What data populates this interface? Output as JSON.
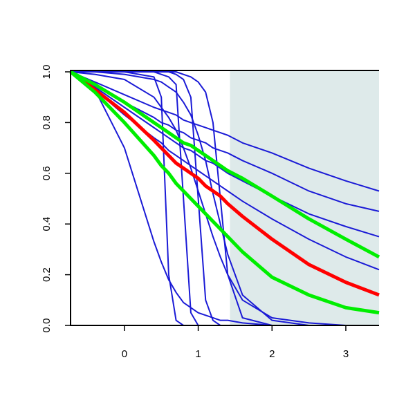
{
  "chart_data": {
    "type": "line",
    "x": [
      -0.73,
      -0.4,
      0,
      0.4,
      0.5,
      0.6,
      0.7,
      0.8,
      0.9,
      1.0,
      1.1,
      1.2,
      1.3,
      1.4,
      1.6,
      2.0,
      2.5,
      3.0,
      3.45
    ],
    "xlim": [
      -0.73,
      3.45
    ],
    "ylim": [
      0,
      1
    ],
    "xticks": [
      0,
      1,
      2,
      3
    ],
    "yticks": [
      {
        "value": 0,
        "label": "0.0"
      },
      0.2,
      0.4,
      0.6,
      0.8,
      {
        "value": 1,
        "label": "1.0"
      }
    ],
    "highlight": {
      "x": [
        1.43,
        3.45
      ],
      "color": "#deeaea"
    },
    "series": [
      {
        "color": "#1a1ad6",
        "values": [
          1,
          0.96,
          0.91,
          0.86,
          0.85,
          0.84,
          0.83,
          0.81,
          0.8,
          0.79,
          0.78,
          0.77,
          0.76,
          0.75,
          0.72,
          0.68,
          0.62,
          0.57,
          0.53
        ]
      },
      {
        "color": "#1a1ad6",
        "values": [
          1,
          0.95,
          0.88,
          0.82,
          0.8,
          0.79,
          0.77,
          0.76,
          0.74,
          0.73,
          0.72,
          0.7,
          0.69,
          0.68,
          0.65,
          0.6,
          0.53,
          0.48,
          0.45
        ]
      },
      {
        "color": "#1a1ad6",
        "values": [
          1,
          0.94,
          0.86,
          0.78,
          0.76,
          0.74,
          0.72,
          0.7,
          0.69,
          0.67,
          0.65,
          0.64,
          0.62,
          0.6,
          0.57,
          0.51,
          0.44,
          0.39,
          0.35
        ]
      },
      {
        "color": "#1a1ad6",
        "values": [
          1,
          0.93,
          0.83,
          0.74,
          0.72,
          0.69,
          0.67,
          0.65,
          0.63,
          0.61,
          0.59,
          0.57,
          0.55,
          0.53,
          0.49,
          0.42,
          0.34,
          0.27,
          0.22
        ]
      },
      {
        "color": "#1a1ad6",
        "values": [
          1,
          0.93,
          0.7,
          0.33,
          0.25,
          0.18,
          0.13,
          0.09,
          0.07,
          0.05,
          0.04,
          0.03,
          0.02,
          0.02,
          0.01,
          0,
          0,
          0,
          0
        ]
      },
      {
        "color": "#1a1ad6",
        "values": [
          1,
          1,
          1,
          0.98,
          0.9,
          0.2,
          0.02,
          0,
          0,
          0,
          0,
          0,
          0,
          0,
          0,
          0,
          0,
          0,
          0
        ]
      },
      {
        "color": "#1a1ad6",
        "values": [
          1,
          1,
          1,
          1,
          0.99,
          0.98,
          0.95,
          0.5,
          0.05,
          0,
          0,
          0,
          0,
          0,
          0,
          0,
          0,
          0,
          0
        ]
      },
      {
        "color": "#1a1ad6",
        "values": [
          1,
          1,
          1,
          1,
          1,
          1,
          0.99,
          0.97,
          0.9,
          0.5,
          0.1,
          0.02,
          0,
          0,
          0,
          0,
          0,
          0,
          0
        ]
      },
      {
        "color": "#1a1ad6",
        "values": [
          1,
          1,
          0.99,
          0.97,
          0.96,
          0.94,
          0.92,
          0.88,
          0.83,
          0.75,
          0.65,
          0.52,
          0.4,
          0.28,
          0.12,
          0.02,
          0,
          0,
          0
        ]
      },
      {
        "color": "#1a1ad6",
        "values": [
          1,
          0.99,
          0.97,
          0.9,
          0.86,
          0.82,
          0.77,
          0.7,
          0.62,
          0.53,
          0.44,
          0.35,
          0.27,
          0.2,
          0.1,
          0.03,
          0.01,
          0,
          0
        ]
      },
      {
        "color": "#1a1ad6",
        "values": [
          1,
          1,
          1,
          1,
          1,
          1,
          1,
          0.99,
          0.98,
          0.96,
          0.92,
          0.8,
          0.5,
          0.2,
          0.03,
          0,
          0,
          0,
          0
        ]
      },
      {
        "color": "#ff0000",
        "width": 5,
        "values": [
          1,
          0.93,
          0.84,
          0.73,
          0.7,
          0.67,
          0.64,
          0.62,
          0.6,
          0.58,
          0.55,
          0.53,
          0.51,
          0.48,
          0.43,
          0.34,
          0.24,
          0.17,
          0.12
        ]
      },
      {
        "color": "#00ee00",
        "width": 5,
        "values": [
          1,
          0.95,
          0.88,
          0.8,
          0.78,
          0.76,
          0.74,
          0.72,
          0.71,
          0.69,
          0.67,
          0.65,
          0.63,
          0.61,
          0.58,
          0.51,
          0.42,
          0.34,
          0.27
        ]
      },
      {
        "color": "#00ee00",
        "width": 5,
        "values": [
          1,
          0.92,
          0.8,
          0.67,
          0.63,
          0.6,
          0.56,
          0.53,
          0.5,
          0.47,
          0.44,
          0.41,
          0.38,
          0.35,
          0.29,
          0.19,
          0.12,
          0.07,
          0.05
        ]
      }
    ]
  }
}
